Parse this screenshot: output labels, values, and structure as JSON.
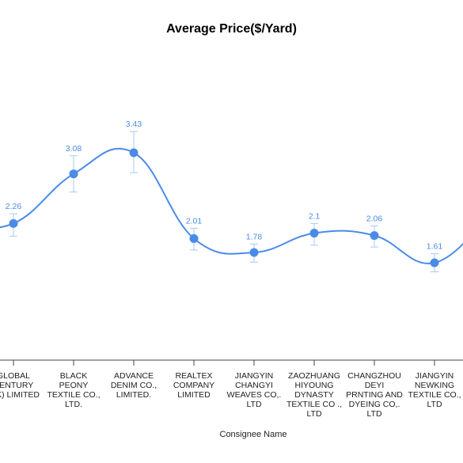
{
  "chart_data": {
    "type": "line",
    "title": "Average Price($/Yard)",
    "xlabel": "Consignee Name",
    "ylabel": "",
    "categories": [
      "GLOBAL CENTURY (HK) LIMITED",
      "BLACK PEONY TEXTILE CO., LTD.",
      "ADVANCE DENIM CO., LIMITED.",
      "REALTEX COMPANY LIMITED",
      "JIANGYIN CHANGYI WEAVES CO,. LTD",
      "ZAOZHUANG HIYOUNG DYNASTY TEXTILE CO ., LTD",
      "CHANGZHOU DEYI PRNTING AND DYEING CO,. LTD",
      "JIANGYIN NEWKING TEXTILE CO., LTD"
    ],
    "category_lines": [
      [
        "GLOBAL",
        "CENTURY",
        "(HK) LIMITED"
      ],
      [
        "BLACK",
        "PEONY",
        "TEXTILE CO.,",
        "LTD."
      ],
      [
        "ADVANCE",
        "DENIM CO.,",
        "LIMITED."
      ],
      [
        "REALTEX",
        "COMPANY",
        "LIMITED"
      ],
      [
        "JIANGYIN",
        "CHANGYI",
        "WEAVES CO,.",
        "LTD"
      ],
      [
        "ZAOZHUANG",
        "HIYOUNG",
        "DYNASTY",
        "TEXTILE CO .,",
        "LTD"
      ],
      [
        "CHANGZHOU",
        "DEYI",
        "PRNTING AND",
        "DYEING CO,.",
        "LTD"
      ],
      [
        "JIANGYIN",
        "NEWKING",
        "TEXTILE CO.,",
        "LTD"
      ]
    ],
    "series": [
      {
        "values": [
          2.26,
          3.08,
          3.43,
          2.01,
          1.78,
          2.1,
          2.06,
          1.61
        ],
        "error_low": [
          2.05,
          2.78,
          3.1,
          1.82,
          1.62,
          1.9,
          1.87,
          1.46
        ],
        "error_high": [
          2.42,
          3.38,
          3.78,
          2.18,
          1.92,
          2.26,
          2.22,
          1.76
        ]
      }
    ],
    "data_labels": [
      "2.26",
      "3.08",
      "3.43",
      "2.01",
      "1.78",
      "2.1",
      "2.06",
      "1.61"
    ],
    "ylim": [
      0,
      4.3
    ],
    "grid": false,
    "legend": "none",
    "colors": {
      "line": "#4a8be8",
      "error": "#a9c8f2",
      "label": "#4a8be8",
      "axis": "#444444"
    }
  }
}
